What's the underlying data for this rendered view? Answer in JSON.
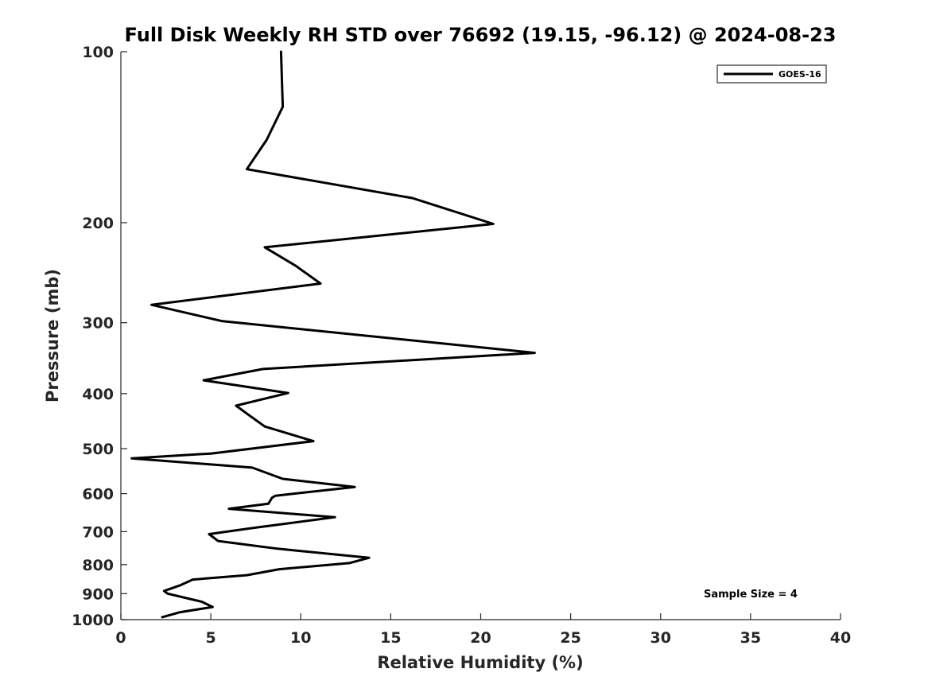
{
  "chart_data": {
    "type": "line",
    "title": "Full Disk Weekly RH STD over 76692 (19.15, -96.12) @ 2024-08-23",
    "xlabel": "Relative Humidity (%)",
    "ylabel": "Pressure (mb)",
    "xlim": [
      0,
      40
    ],
    "ylim": [
      100,
      1000
    ],
    "y_scale": "log",
    "y_reversed": true,
    "x_ticks": [
      0,
      5,
      10,
      15,
      20,
      25,
      30,
      35,
      40
    ],
    "y_ticks": [
      100,
      200,
      300,
      400,
      500,
      600,
      700,
      800,
      900,
      1000
    ],
    "grid": false,
    "legend_position": "top-right",
    "series": [
      {
        "name": "GOES-16",
        "color": "#000000",
        "points": [
          [
            8.9,
            100
          ],
          [
            9.0,
            125
          ],
          [
            8.1,
            143
          ],
          [
            7.0,
            161
          ],
          [
            16.2,
            181
          ],
          [
            20.7,
            201
          ],
          [
            8.0,
            221
          ],
          [
            9.7,
            238
          ],
          [
            11.1,
            256
          ],
          [
            1.7,
            279
          ],
          [
            5.6,
            298
          ],
          [
            23.0,
            339
          ],
          [
            7.9,
            362
          ],
          [
            4.6,
            379
          ],
          [
            9.3,
            399
          ],
          [
            6.4,
            420
          ],
          [
            7.1,
            436
          ],
          [
            8.0,
            457
          ],
          [
            10.7,
            485
          ],
          [
            5.0,
            510
          ],
          [
            0.6,
            520
          ],
          [
            7.3,
            540
          ],
          [
            9.0,
            565
          ],
          [
            13.0,
            584
          ],
          [
            8.6,
            605
          ],
          [
            8.4,
            610
          ],
          [
            8.2,
            625
          ],
          [
            6.0,
            638
          ],
          [
            11.9,
            660
          ],
          [
            7.3,
            690
          ],
          [
            4.9,
            707
          ],
          [
            5.4,
            727
          ],
          [
            8.7,
            750
          ],
          [
            13.8,
            778
          ],
          [
            12.7,
            795
          ],
          [
            8.8,
            815
          ],
          [
            7.0,
            835
          ],
          [
            4.0,
            850
          ],
          [
            3.3,
            870
          ],
          [
            2.4,
            890
          ],
          [
            2.6,
            900
          ],
          [
            4.5,
            930
          ],
          [
            5.1,
            950
          ],
          [
            3.3,
            970
          ],
          [
            2.3,
            990
          ]
        ]
      }
    ],
    "annotations": [
      "Sample Size = 4"
    ]
  }
}
